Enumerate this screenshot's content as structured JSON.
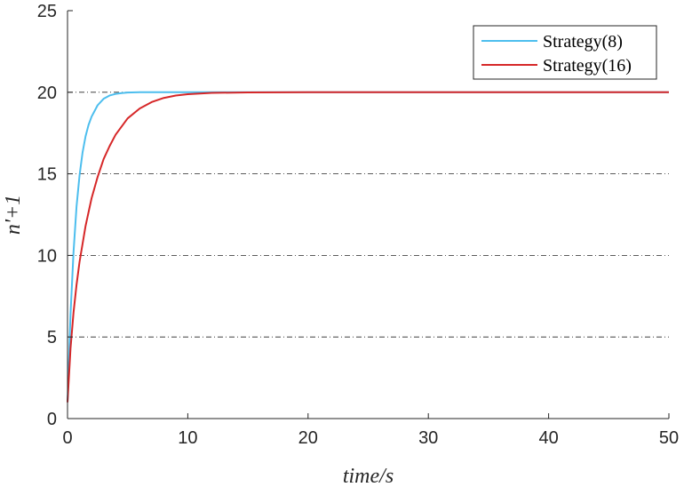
{
  "chart_data": {
    "type": "line",
    "xlabel": "time/s",
    "ylabel": "n'+1",
    "xlim": [
      0,
      50
    ],
    "ylim": [
      0,
      25
    ],
    "xticks": [
      0,
      10,
      20,
      30,
      40,
      50
    ],
    "yticks": [
      0,
      5,
      10,
      15,
      20,
      25
    ],
    "grid": "horizontal dash-dot at y = 5, 10, 15, 20",
    "legend_position": "top-right",
    "series": [
      {
        "name": "Strategy(8)",
        "color": "#4DBEEE",
        "x": [
          0,
          0.25,
          0.5,
          0.75,
          1,
          1.25,
          1.5,
          1.75,
          2,
          2.5,
          3,
          3.5,
          4,
          4.5,
          5,
          6,
          7,
          8,
          10,
          15,
          20,
          30,
          40,
          50
        ],
        "y": [
          1,
          6.4,
          10.2,
          13.0,
          14.9,
          16.3,
          17.3,
          18.0,
          18.5,
          19.2,
          19.6,
          19.8,
          19.9,
          19.95,
          19.98,
          20,
          20,
          20,
          20,
          20,
          20,
          20,
          20,
          20
        ]
      },
      {
        "name": "Strategy(16)",
        "color": "#D62728",
        "x": [
          0,
          0.25,
          0.5,
          0.75,
          1,
          1.5,
          2,
          2.5,
          3,
          3.5,
          4,
          5,
          6,
          7,
          8,
          9,
          10,
          12,
          15,
          20,
          30,
          40,
          50
        ],
        "y": [
          1,
          4.3,
          6.5,
          8.2,
          9.6,
          11.8,
          13.5,
          14.8,
          15.9,
          16.7,
          17.4,
          18.4,
          19.0,
          19.4,
          19.65,
          19.8,
          19.88,
          19.96,
          19.99,
          20,
          20,
          20,
          20
        ]
      }
    ]
  }
}
